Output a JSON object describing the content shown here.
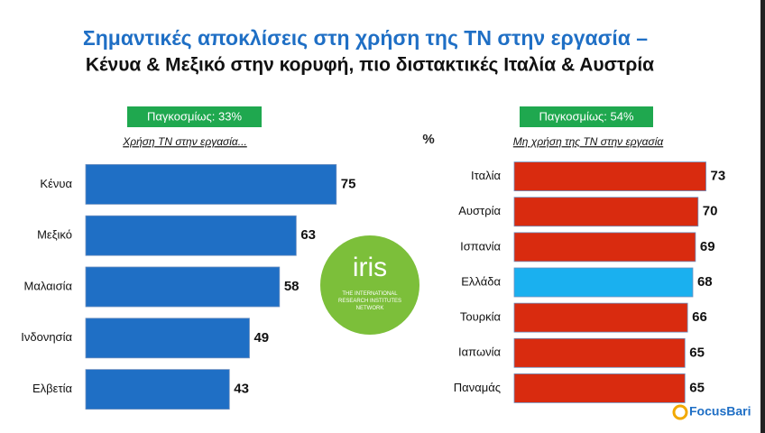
{
  "header": {
    "title": "Σημαντικές αποκλίσεις στη χρήση της ΤΝ στην εργασία –",
    "subtitle": "Κένυα & Μεξικό στην κορυφή, πιο διστακτικές Ιταλία & Αυστρία"
  },
  "unit": "%",
  "chart_data": [
    {
      "type": "bar",
      "orientation": "horizontal",
      "global_note": "Παγκοσμίως: 33%",
      "axis_label": "Χρήση ΤΝ στην εργασία...",
      "categories": [
        "Κένυα",
        "Μεξικό",
        "Μαλαισία",
        "Ινδονησία",
        "Ελβετία"
      ],
      "values": [
        75,
        63,
        58,
        49,
        43
      ],
      "colors": [
        "#1f6fc5",
        "#1f6fc5",
        "#1f6fc5",
        "#1f6fc5",
        "#1f6fc5"
      ],
      "xlim": [
        0,
        81
      ]
    },
    {
      "type": "bar",
      "orientation": "horizontal",
      "global_note": "Παγκοσμίως: 54%",
      "axis_label": "Μη χρήση της ΤΝ στην εργασία",
      "categories": [
        "Ιταλία",
        "Αυστρία",
        "Ισπανία",
        "Ελλάδα",
        "Τουρκία",
        "Ιαπωνία",
        "Παναμάς"
      ],
      "values": [
        73,
        70,
        69,
        68,
        66,
        65,
        65
      ],
      "colors": [
        "#d92b0f",
        "#d92b0f",
        "#d92b0f",
        "#1ab0ef",
        "#d92b0f",
        "#d92b0f",
        "#d92b0f"
      ],
      "xlim": [
        0,
        79
      ]
    }
  ],
  "logos": {
    "iris": "iris",
    "iris_caption": "THE INTERNATIONAL RESEARCH INSTITUTES NETWORK",
    "brand": "FocusBari"
  }
}
